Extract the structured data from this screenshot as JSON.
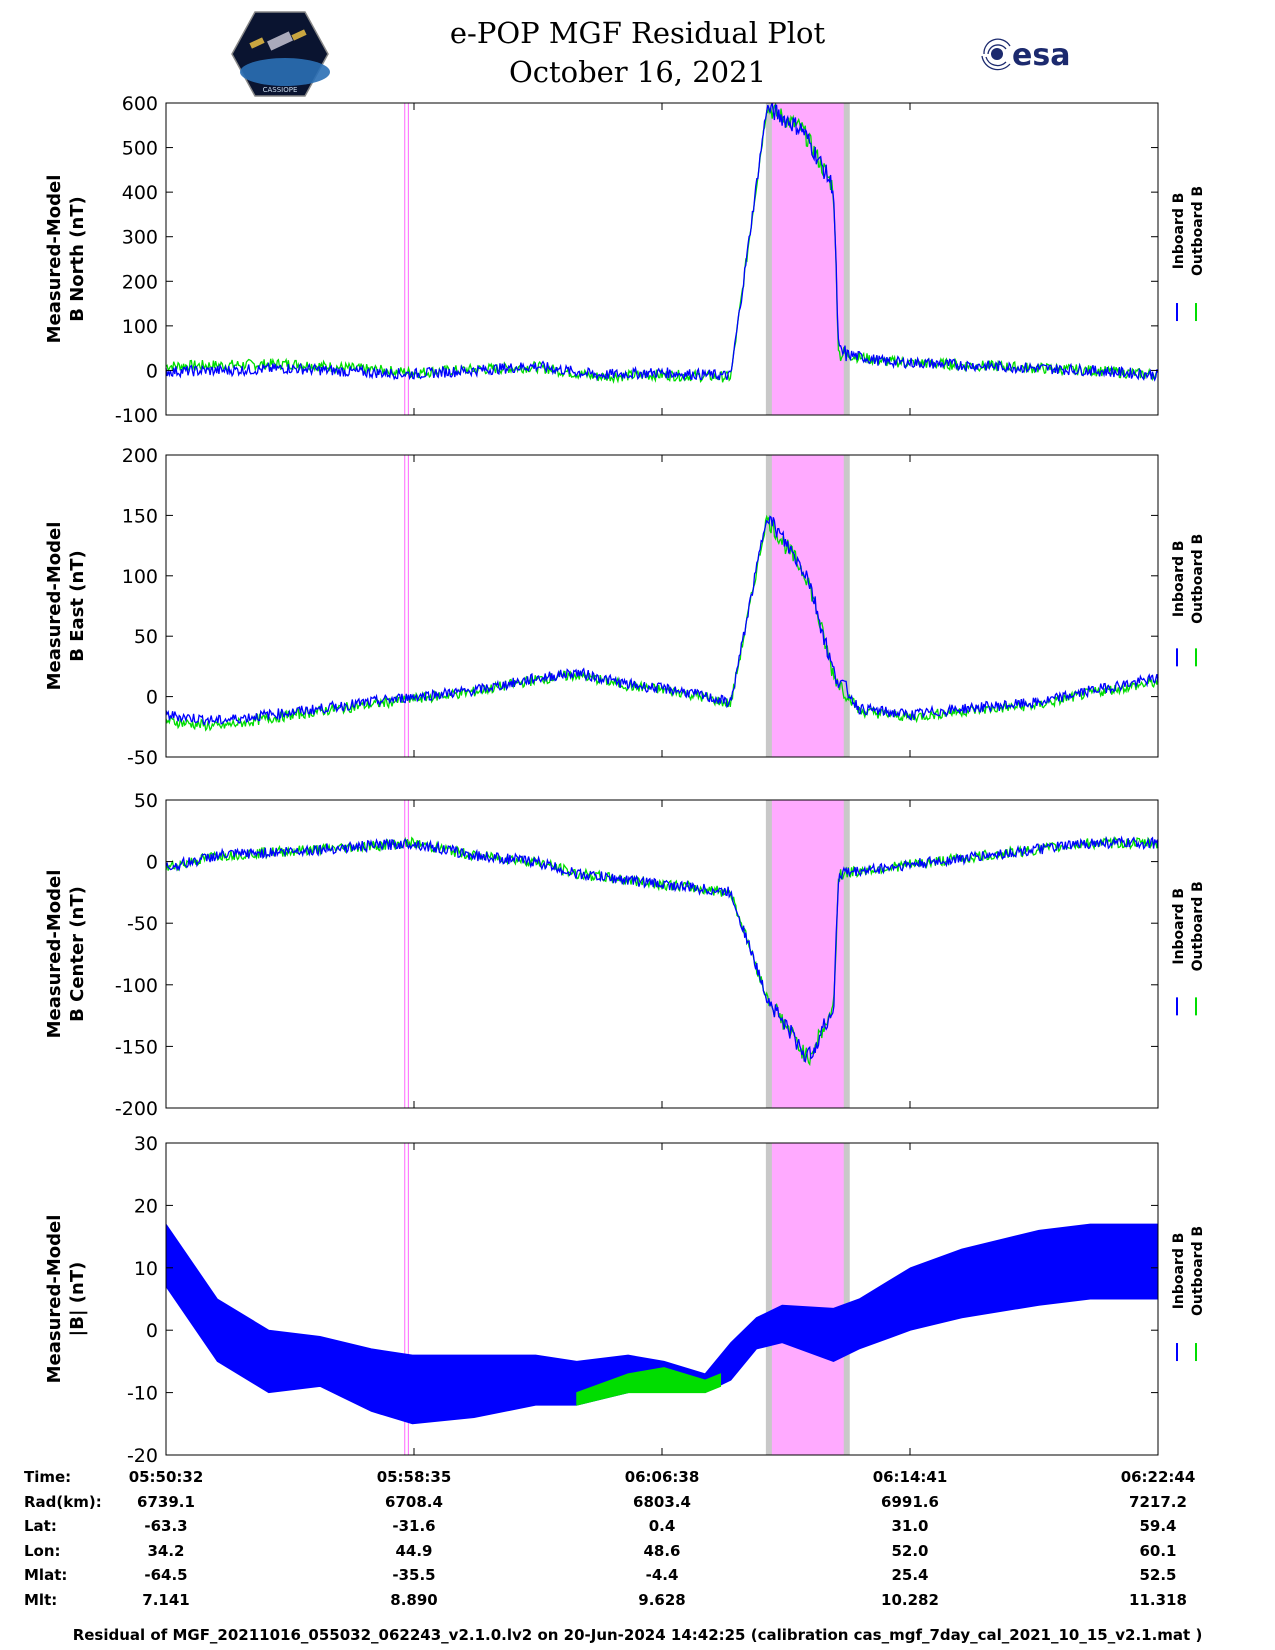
{
  "header": {
    "title_line1": "e-POP MGF Residual Plot",
    "title_line2": "October 16, 2021",
    "logo_left_text": "CASSIOPE",
    "logo_right_text": "esa"
  },
  "legend": {
    "inboard": "Inboard B",
    "outboard": "Outboard B"
  },
  "colors": {
    "inboard": "#0000ff",
    "outboard": "#00dd00",
    "highlight": "#ffaaff",
    "gray_band": "#c8c8c8",
    "marker": "#ff66ff"
  },
  "chart_data": [
    {
      "type": "line",
      "panel": "north",
      "ylabel_line1": "Measured-Model",
      "ylabel_line2": "B North (nT)",
      "ylim": [
        -100,
        600
      ],
      "yticks": [
        -100,
        0,
        100,
        200,
        300,
        400,
        500,
        600
      ],
      "x_range_seconds": [
        0,
        1932
      ],
      "series": [
        {
          "name": "Inboard B",
          "points": [
            [
              0,
              -2
            ],
            [
              120,
              0
            ],
            [
              240,
              5
            ],
            [
              360,
              -3
            ],
            [
              480,
              -8
            ],
            [
              600,
              0
            ],
            [
              720,
              10
            ],
            [
              840,
              -10
            ],
            [
              960,
              -5
            ],
            [
              1100,
              -12
            ],
            [
              1170,
              590
            ],
            [
              1240,
              540
            ],
            [
              1300,
              410
            ],
            [
              1310,
              40
            ],
            [
              1400,
              20
            ],
            [
              1500,
              15
            ],
            [
              1600,
              10
            ],
            [
              1700,
              5
            ],
            [
              1800,
              0
            ],
            [
              1932,
              -10
            ]
          ]
        },
        {
          "name": "Outboard B",
          "points": [
            [
              0,
              10
            ],
            [
              120,
              12
            ],
            [
              240,
              15
            ],
            [
              360,
              5
            ],
            [
              480,
              -5
            ],
            [
              600,
              2
            ],
            [
              720,
              8
            ],
            [
              840,
              -14
            ],
            [
              960,
              -10
            ],
            [
              1100,
              -15
            ],
            [
              1170,
              590
            ],
            [
              1240,
              540
            ],
            [
              1300,
              410
            ],
            [
              1310,
              38
            ],
            [
              1400,
              20
            ],
            [
              1500,
              15
            ],
            [
              1600,
              10
            ],
            [
              1700,
              5
            ],
            [
              1800,
              0
            ],
            [
              1932,
              -10
            ]
          ]
        }
      ],
      "highlight_band_seconds": [
        1180,
        1320
      ],
      "marker_lines_seconds": [
        465,
        472
      ]
    },
    {
      "type": "line",
      "panel": "east",
      "ylabel_line1": "Measured-Model",
      "ylabel_line2": "B East (nT)",
      "ylim": [
        -50,
        200
      ],
      "yticks": [
        -50,
        0,
        50,
        100,
        150,
        200
      ],
      "x_range_seconds": [
        0,
        1932
      ],
      "series": [
        {
          "name": "Inboard B",
          "points": [
            [
              0,
              -15
            ],
            [
              100,
              -20
            ],
            [
              200,
              -15
            ],
            [
              300,
              -10
            ],
            [
              480,
              0
            ],
            [
              600,
              5
            ],
            [
              720,
              15
            ],
            [
              800,
              20
            ],
            [
              900,
              10
            ],
            [
              1000,
              5
            ],
            [
              1100,
              -5
            ],
            [
              1170,
              150
            ],
            [
              1250,
              100
            ],
            [
              1300,
              20
            ],
            [
              1350,
              -10
            ],
            [
              1450,
              -15
            ],
            [
              1550,
              -10
            ],
            [
              1700,
              -5
            ],
            [
              1800,
              5
            ],
            [
              1932,
              15
            ]
          ]
        },
        {
          "name": "Outboard B",
          "points": [
            [
              0,
              -20
            ],
            [
              100,
              -25
            ],
            [
              200,
              -18
            ],
            [
              300,
              -12
            ],
            [
              480,
              -2
            ],
            [
              600,
              4
            ],
            [
              720,
              14
            ],
            [
              800,
              18
            ],
            [
              900,
              9
            ],
            [
              1000,
              4
            ],
            [
              1100,
              -6
            ],
            [
              1170,
              148
            ],
            [
              1250,
              98
            ],
            [
              1300,
              18
            ],
            [
              1350,
              -12
            ],
            [
              1450,
              -17
            ],
            [
              1550,
              -12
            ],
            [
              1700,
              -7
            ],
            [
              1800,
              3
            ],
            [
              1932,
              12
            ]
          ]
        }
      ],
      "highlight_band_seconds": [
        1180,
        1320
      ],
      "marker_lines_seconds": [
        465,
        472
      ]
    },
    {
      "type": "line",
      "panel": "center",
      "ylabel_line1": "Measured-Model",
      "ylabel_line2": "B Center (nT)",
      "ylim": [
        -200,
        50
      ],
      "yticks": [
        -200,
        -150,
        -100,
        -50,
        0,
        50
      ],
      "x_range_seconds": [
        0,
        1932
      ],
      "series": [
        {
          "name": "Inboard B",
          "points": [
            [
              0,
              -5
            ],
            [
              100,
              5
            ],
            [
              300,
              10
            ],
            [
              480,
              15
            ],
            [
              600,
              5
            ],
            [
              720,
              0
            ],
            [
              800,
              -10
            ],
            [
              900,
              -15
            ],
            [
              1000,
              -20
            ],
            [
              1100,
              -25
            ],
            [
              1170,
              -110
            ],
            [
              1250,
              -160
            ],
            [
              1300,
              -120
            ],
            [
              1310,
              -10
            ],
            [
              1400,
              -5
            ],
            [
              1500,
              0
            ],
            [
              1600,
              5
            ],
            [
              1700,
              10
            ],
            [
              1800,
              15
            ],
            [
              1932,
              15
            ]
          ]
        },
        {
          "name": "Outboard B",
          "points": [
            [
              0,
              -5
            ],
            [
              100,
              5
            ],
            [
              300,
              10
            ],
            [
              480,
              15
            ],
            [
              600,
              5
            ],
            [
              720,
              0
            ],
            [
              800,
              -10
            ],
            [
              900,
              -15
            ],
            [
              1000,
              -20
            ],
            [
              1100,
              -25
            ],
            [
              1170,
              -110
            ],
            [
              1250,
              -160
            ],
            [
              1300,
              -120
            ],
            [
              1310,
              -10
            ],
            [
              1400,
              -5
            ],
            [
              1500,
              0
            ],
            [
              1600,
              5
            ],
            [
              1700,
              10
            ],
            [
              1800,
              15
            ],
            [
              1932,
              15
            ]
          ]
        }
      ],
      "highlight_band_seconds": [
        1180,
        1320
      ],
      "marker_lines_seconds": [
        465,
        472
      ]
    },
    {
      "type": "area",
      "panel": "magnitude",
      "ylabel_line1": "Measured-Model",
      "ylabel_line2": "|B| (nT)",
      "ylim": [
        -20,
        30
      ],
      "yticks": [
        -20,
        -10,
        0,
        10,
        20,
        30
      ],
      "x_range_seconds": [
        0,
        1932
      ],
      "series": [
        {
          "name": "Inboard B",
          "upper": [
            [
              0,
              17
            ],
            [
              100,
              5
            ],
            [
              200,
              0
            ],
            [
              300,
              -1
            ],
            [
              400,
              -3
            ],
            [
              480,
              -4
            ],
            [
              600,
              -4
            ],
            [
              720,
              -4
            ],
            [
              800,
              -5
            ],
            [
              900,
              -4
            ],
            [
              970,
              -5
            ],
            [
              1050,
              -7
            ],
            [
              1100,
              -2
            ],
            [
              1150,
              2
            ],
            [
              1200,
              4
            ],
            [
              1300,
              3.5
            ],
            [
              1350,
              5
            ],
            [
              1450,
              10
            ],
            [
              1550,
              13
            ],
            [
              1700,
              16
            ],
            [
              1800,
              17
            ],
            [
              1932,
              17
            ]
          ],
          "lower": [
            [
              0,
              7
            ],
            [
              100,
              -5
            ],
            [
              200,
              -10
            ],
            [
              300,
              -9
            ],
            [
              400,
              -13
            ],
            [
              480,
              -15
            ],
            [
              600,
              -14
            ],
            [
              720,
              -12
            ],
            [
              800,
              -12
            ],
            [
              900,
              -10
            ],
            [
              970,
              -8
            ],
            [
              1050,
              -10
            ],
            [
              1100,
              -8
            ],
            [
              1150,
              -3
            ],
            [
              1200,
              -2
            ],
            [
              1300,
              -5
            ],
            [
              1350,
              -3
            ],
            [
              1450,
              0
            ],
            [
              1550,
              2
            ],
            [
              1700,
              4
            ],
            [
              1800,
              5
            ],
            [
              1932,
              5
            ]
          ]
        },
        {
          "name": "Outboard B",
          "upper": [
            [
              800,
              -10
            ],
            [
              900,
              -7
            ],
            [
              970,
              -6
            ],
            [
              1050,
              -8
            ],
            [
              1080,
              -7
            ]
          ],
          "lower": [
            [
              800,
              -12
            ],
            [
              900,
              -10
            ],
            [
              970,
              -10
            ],
            [
              1050,
              -10
            ],
            [
              1080,
              -9
            ]
          ]
        }
      ],
      "highlight_band_seconds": [
        1180,
        1320
      ],
      "marker_lines_seconds": [
        465,
        472
      ]
    }
  ],
  "orbit_table": {
    "row_labels": [
      "Time:",
      "Rad(km):",
      "Lat:",
      "Lon:",
      "Mlat:",
      "Mlt:"
    ],
    "columns": [
      [
        "05:50:32",
        "6739.1",
        "-63.3",
        "34.2",
        "-64.5",
        "7.141"
      ],
      [
        "05:58:35",
        "6708.4",
        "-31.6",
        "44.9",
        "-35.5",
        "8.890"
      ],
      [
        "06:06:38",
        "6803.4",
        "0.4",
        "48.6",
        "-4.4",
        "9.628"
      ],
      [
        "06:14:41",
        "6991.6",
        "31.0",
        "52.0",
        "25.4",
        "10.282"
      ],
      [
        "06:22:44",
        "7217.2",
        "59.4",
        "60.1",
        "52.5",
        "11.318"
      ]
    ]
  },
  "footer": "Residual of MGF_20211016_055032_062243_v2.1.0.lv2 on 20-Jun-2024 14:42:25 (calibration cas_mgf_7day_cal_2021_10_15_v2.1.mat )"
}
